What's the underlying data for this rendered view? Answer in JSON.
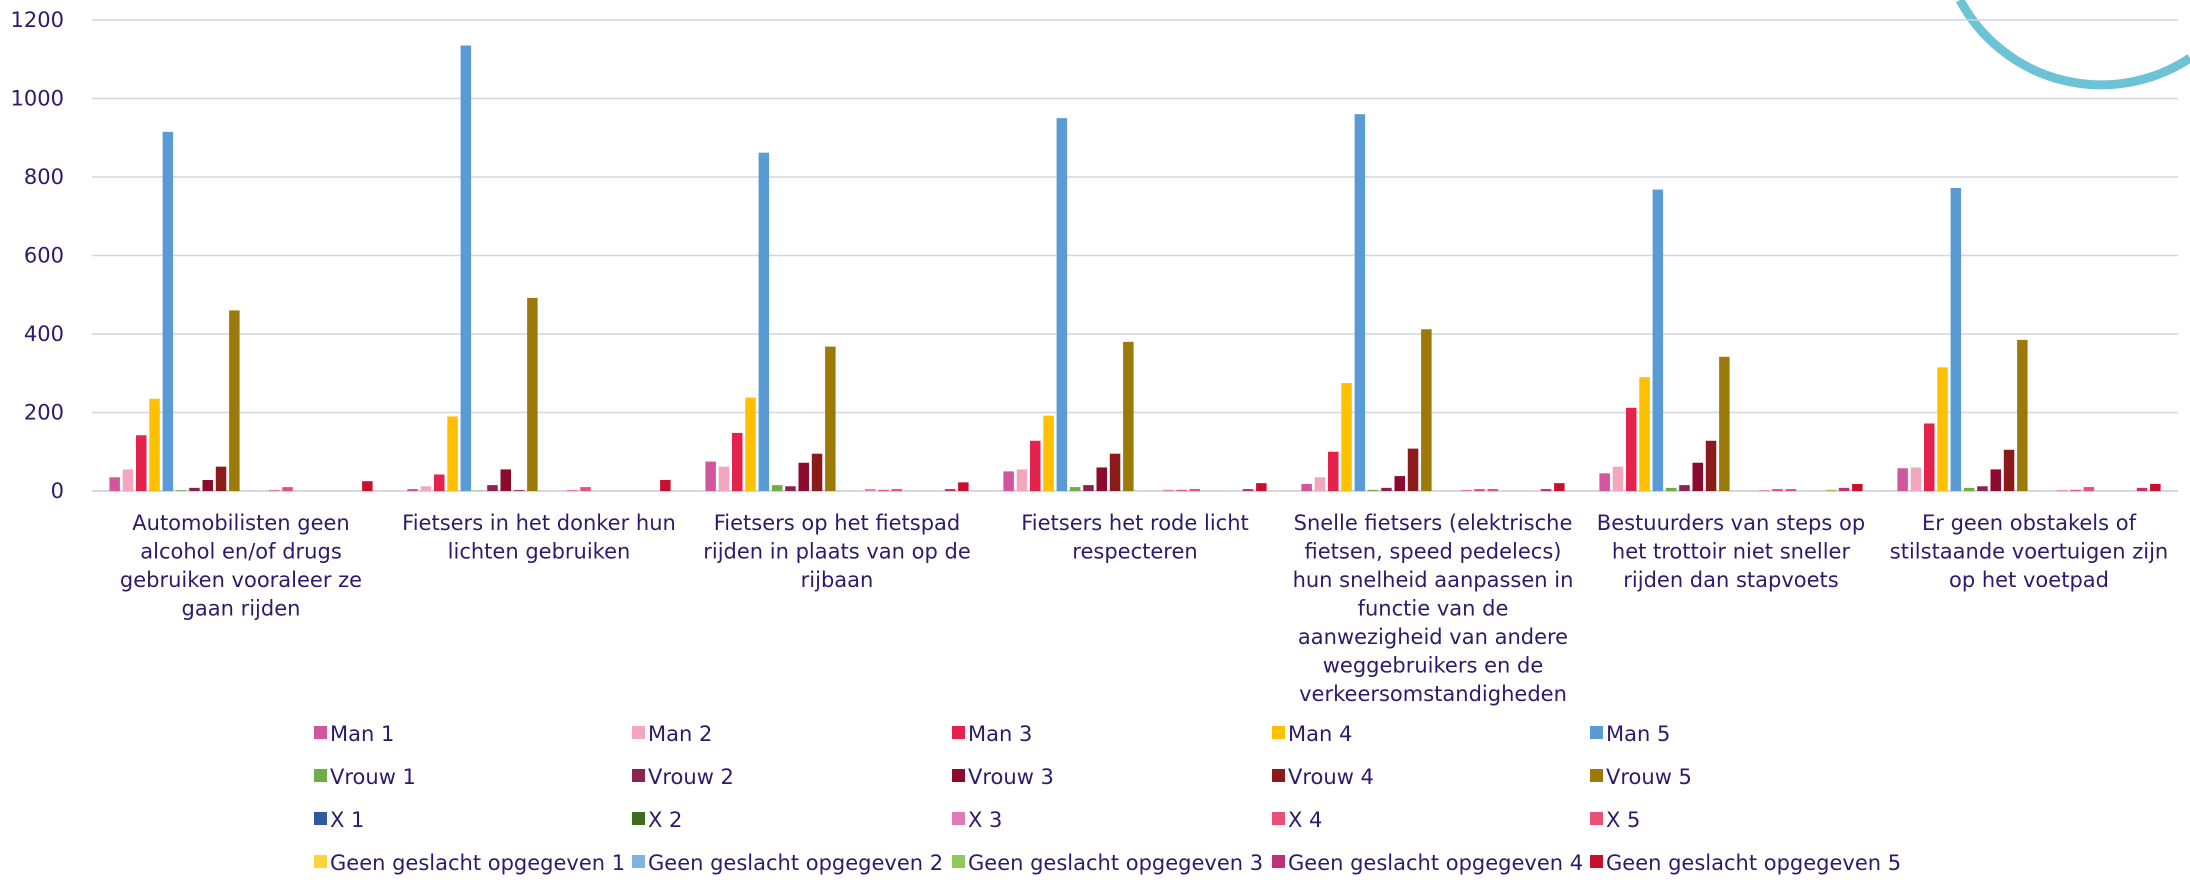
{
  "chart_data": {
    "type": "bar",
    "title": "",
    "xlabel": "",
    "ylabel": "",
    "ylim": [
      0,
      1200
    ],
    "yticks": [
      0,
      200,
      400,
      600,
      800,
      1000,
      1200
    ],
    "grid": true,
    "legend_position": "bottom",
    "categories": [
      [
        "Automobilisten geen",
        "alcohol en/of drugs",
        "gebruiken vooraleer ze",
        "gaan rijden"
      ],
      [
        "Fietsers in het donker hun",
        "lichten gebruiken"
      ],
      [
        "Fietsers op het fietspad",
        "rijden in plaats van op de",
        "rijbaan"
      ],
      [
        "Fietsers het rode licht",
        "respecteren"
      ],
      [
        "Snelle fietsers (elektrische",
        "fietsen, speed pedelecs)",
        "hun snelheid aanpassen in",
        "functie van de",
        "aanwezigheid van andere",
        "weggebruikers en de",
        "verkeersomstandigheden"
      ],
      [
        "Bestuurders van steps op",
        "het trottoir niet sneller",
        "rijden dan stapvoets"
      ],
      [
        "Er geen obstakels of",
        "stilstaande voertuigen zijn",
        "op het voetpad"
      ]
    ],
    "series": [
      {
        "name": "Man 1",
        "color": "#d2569e",
        "values": [
          35,
          5,
          75,
          50,
          18,
          45,
          58
        ]
      },
      {
        "name": "Man 2",
        "color": "#f2a7bf",
        "values": [
          55,
          12,
          62,
          55,
          35,
          62,
          60
        ]
      },
      {
        "name": "Man 3",
        "color": "#e3234b",
        "values": [
          142,
          42,
          148,
          128,
          100,
          212,
          172
        ]
      },
      {
        "name": "Man 4",
        "color": "#ffc000",
        "values": [
          235,
          190,
          238,
          192,
          275,
          290,
          315
        ]
      },
      {
        "name": "Man 5",
        "color": "#5b9bd5",
        "values": [
          915,
          1135,
          862,
          950,
          960,
          768,
          772
        ]
      },
      {
        "name": "Vrouw 1",
        "color": "#70ad47",
        "values": [
          2,
          1,
          15,
          10,
          3,
          8,
          8
        ]
      },
      {
        "name": "Vrouw 2",
        "color": "#8b2252",
        "values": [
          8,
          15,
          12,
          15,
          8,
          15,
          12
        ]
      },
      {
        "name": "Vrouw 3",
        "color": "#8b0a2e",
        "values": [
          28,
          55,
          72,
          60,
          38,
          72,
          55
        ]
      },
      {
        "name": "Vrouw 4",
        "color": "#8b1a1a",
        "values": [
          62,
          2,
          95,
          95,
          108,
          128,
          105
        ]
      },
      {
        "name": "Vrouw 5",
        "color": "#9c7a0a",
        "values": [
          460,
          492,
          368,
          380,
          412,
          342,
          385
        ]
      },
      {
        "name": "X 1",
        "color": "#2e5a9c",
        "values": [
          0,
          0,
          0,
          0,
          0,
          0,
          0
        ]
      },
      {
        "name": "X 2",
        "color": "#3d6b20",
        "values": [
          0,
          0,
          0,
          0,
          0,
          0,
          0
        ]
      },
      {
        "name": "X 3",
        "color": "#e07bb5",
        "values": [
          3,
          3,
          5,
          3,
          3,
          2,
          2
        ]
      },
      {
        "name": "X 4",
        "color": "#e8507a",
        "values": [
          10,
          10,
          3,
          3,
          5,
          5,
          3
        ]
      },
      {
        "name": "X 5",
        "color": "#e8507a",
        "values": [
          0,
          0,
          5,
          5,
          5,
          5,
          10
        ]
      },
      {
        "name": "Geen geslacht opgegeven 1",
        "color": "#ffd43b",
        "values": [
          0,
          0,
          0,
          0,
          0,
          0,
          0
        ]
      },
      {
        "name": "Geen geslacht opgegeven 2",
        "color": "#7fb3e0",
        "values": [
          0,
          0,
          0,
          0,
          0,
          0,
          0
        ]
      },
      {
        "name": "Geen geslacht opgegeven 3",
        "color": "#92c85a",
        "values": [
          0,
          0,
          0,
          0,
          0,
          3,
          0
        ]
      },
      {
        "name": "Geen geslacht opgegeven 4",
        "color": "#c0307a",
        "values": [
          0,
          0,
          5,
          5,
          5,
          8,
          8
        ]
      },
      {
        "name": "Geen geslacht opgegeven 5",
        "color": "#c8102e",
        "values": [
          25,
          28,
          22,
          20,
          20,
          18,
          18
        ]
      }
    ]
  },
  "decoration": {
    "arc_color": "#6cc3d5"
  }
}
